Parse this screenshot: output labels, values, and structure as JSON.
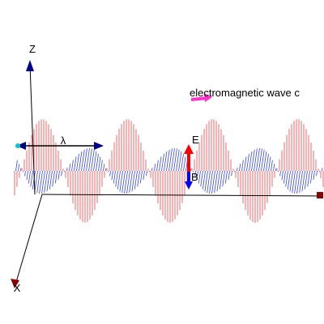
{
  "axes": {
    "z": "Z",
    "x": "X"
  },
  "labels": {
    "wavelength": "λ",
    "electric": "E",
    "magnetic": "B"
  },
  "legend": {
    "text": "electromagnetic wave c"
  }
}
